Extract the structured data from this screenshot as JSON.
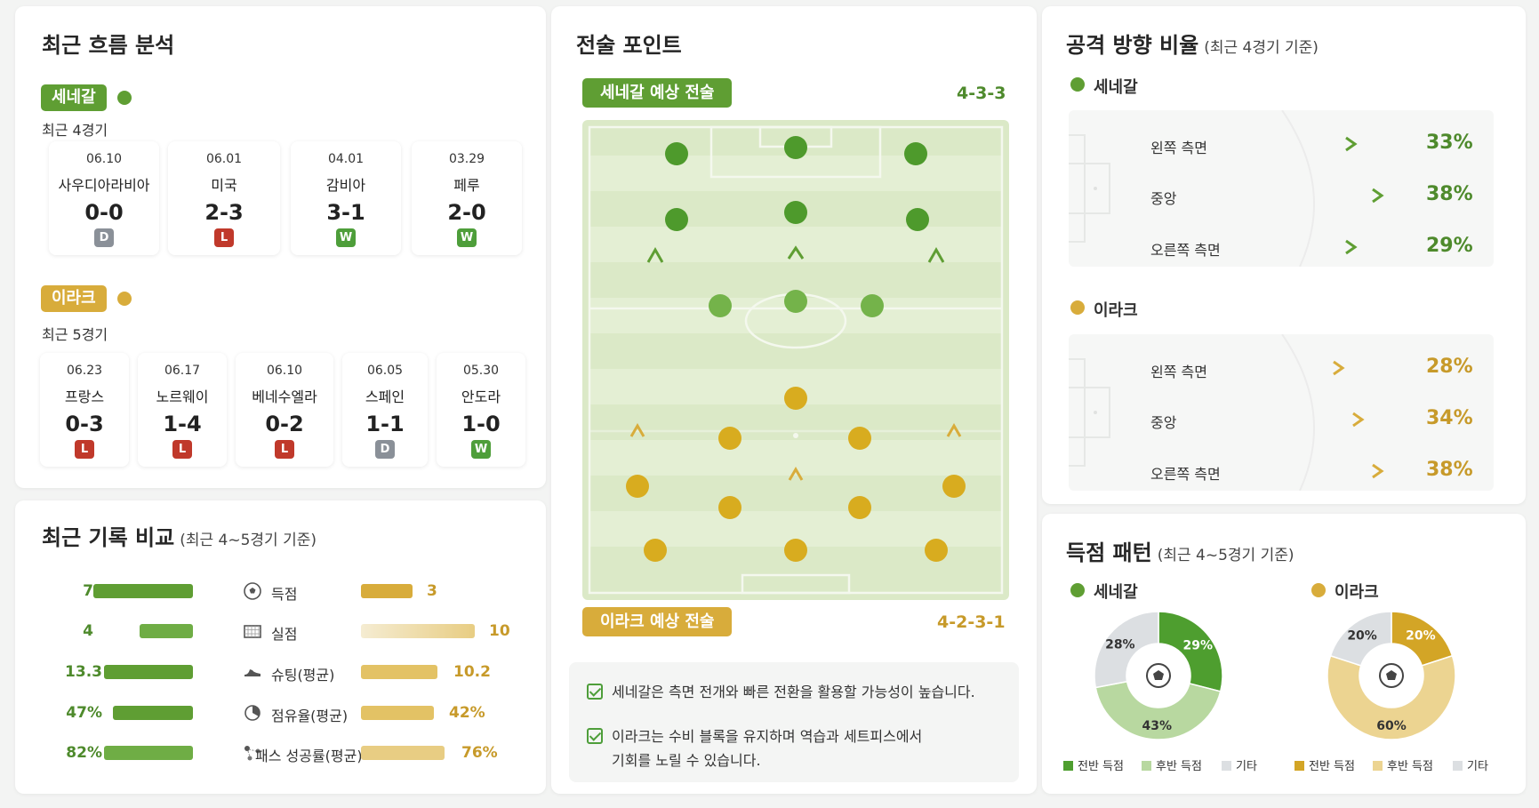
{
  "flow": {
    "title": "최근 흐름 분석",
    "teams": [
      {
        "name": "세네갈",
        "range": "최근 4경기",
        "color": "#5f9e33",
        "matches": [
          {
            "date": "06.10",
            "opp": "사우디아라비아",
            "score": "0-0",
            "result": "D"
          },
          {
            "date": "06.01",
            "opp": "미국",
            "score": "2-3",
            "result": "L"
          },
          {
            "date": "04.01",
            "opp": "감비아",
            "score": "3-1",
            "result": "W"
          },
          {
            "date": "03.29",
            "opp": "페루",
            "score": "2-0",
            "result": "W"
          }
        ]
      },
      {
        "name": "이라크",
        "range": "최근 5경기",
        "color": "#d8ac3b",
        "matches": [
          {
            "date": "06.23",
            "opp": "프랑스",
            "score": "0-3",
            "result": "L"
          },
          {
            "date": "06.17",
            "opp": "노르웨이",
            "score": "1-4",
            "result": "L"
          },
          {
            "date": "06.10",
            "opp": "베네수엘라",
            "score": "0-2",
            "result": "L"
          },
          {
            "date": "06.05",
            "opp": "스페인",
            "score": "1-1",
            "result": "D"
          },
          {
            "date": "05.30",
            "opp": "안도라",
            "score": "1-0",
            "result": "W"
          }
        ]
      }
    ]
  },
  "records": {
    "title": "최근 기록 비교",
    "subtitle": "(최근 4~5경기 기준)",
    "rows": [
      {
        "label": "득점",
        "icon": "soccer-ball-icon",
        "left": "7",
        "right": "3",
        "left_ratio": 0.7,
        "right_ratio": 0.3
      },
      {
        "label": "실점",
        "icon": "goal-net-icon",
        "left": "4",
        "right": "10",
        "left_ratio": 0.29,
        "right_ratio": 0.71
      },
      {
        "label": "슈팅(평균)",
        "icon": "shoe-icon",
        "left": "13.3",
        "right": "10.2",
        "left_ratio": 0.57,
        "right_ratio": 0.43
      },
      {
        "label": "점유율(평균)",
        "icon": "pie-icon",
        "left": "47%",
        "right": "42%",
        "left_ratio": 0.53,
        "right_ratio": 0.47
      },
      {
        "label": "패스 성공률(평균)",
        "icon": "pass-icon",
        "left": "82%",
        "right": "76%",
        "left_ratio": 0.52,
        "right_ratio": 0.48
      }
    ]
  },
  "tactics": {
    "title": "전술 포인트",
    "senegal_tag": "세네갈 예상 전술",
    "senegal_formation": "4-3-3",
    "iraq_tag": "이라크 예상 전술",
    "iraq_formation": "4-2-3-1",
    "notes": [
      "세네갈은 측면 전개와 빠른 전환을 활용할 가능성이 높습니다.",
      "이라크는 수비 블록을 유지하며 역습과 세트피스에서",
      "기회를 노릴 수 있습니다."
    ]
  },
  "attack": {
    "title": "공격 방향 비율",
    "subtitle": "(최근 4경기 기준)",
    "teams": [
      {
        "name": "세네갈",
        "rows": [
          {
            "label": "왼쪽 측면",
            "pct": "33%",
            "value": 33
          },
          {
            "label": "중앙",
            "pct": "38%",
            "value": 38
          },
          {
            "label": "오른쪽 측면",
            "pct": "29%",
            "value": 29
          }
        ]
      },
      {
        "name": "이라크",
        "rows": [
          {
            "label": "왼쪽 측면",
            "pct": "28%",
            "value": 28
          },
          {
            "label": "중앙",
            "pct": "34%",
            "value": 34
          },
          {
            "label": "오른쪽 측면",
            "pct": "38%",
            "value": 38
          }
        ]
      }
    ]
  },
  "scoring": {
    "title": "득점 패턴",
    "subtitle": "(최근 4~5경기 기준)",
    "teams": [
      {
        "name": "세네갈",
        "slices": [
          {
            "label": "전반 득점",
            "pct": "29%",
            "value": 29,
            "color": "#4e9e2f"
          },
          {
            "label": "후반 득점",
            "pct": "43%",
            "value": 43,
            "color": "#b8d8a0"
          },
          {
            "label": "기타",
            "pct": "28%",
            "value": 28,
            "color": "#dcdfe2"
          }
        ]
      },
      {
        "name": "이라크",
        "slices": [
          {
            "label": "전반 득점",
            "pct": "20%",
            "value": 20,
            "color": "#d3a526"
          },
          {
            "label": "후반 득점",
            "pct": "60%",
            "value": 60,
            "color": "#ecd491"
          },
          {
            "label": "기타",
            "pct": "20%",
            "value": 20,
            "color": "#dcdfe2"
          }
        ]
      }
    ]
  }
}
